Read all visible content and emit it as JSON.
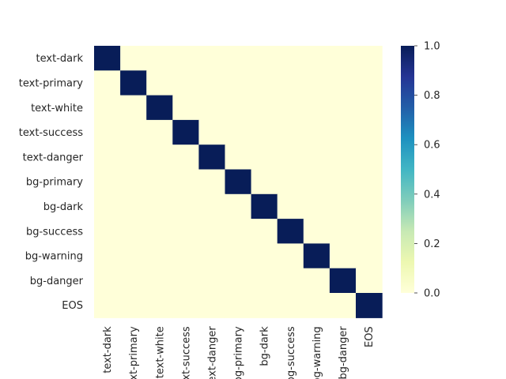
{
  "chart_data": {
    "type": "heatmap",
    "title": "",
    "xlabel": "",
    "ylabel": "",
    "rows": [
      "text-dark",
      "text-primary",
      "text-white",
      "text-success",
      "text-danger",
      "bg-primary",
      "bg-dark",
      "bg-success",
      "bg-warning",
      "bg-danger",
      "EOS"
    ],
    "cols": [
      "text-dark",
      "text-primary",
      "text-white",
      "text-success",
      "text-danger",
      "bg-primary",
      "bg-dark",
      "bg-success",
      "bg-warning",
      "bg-danger",
      "EOS"
    ],
    "values": [
      [
        1,
        0,
        0,
        0,
        0,
        0,
        0,
        0,
        0,
        0,
        0
      ],
      [
        0,
        1,
        0,
        0,
        0,
        0,
        0,
        0,
        0,
        0,
        0
      ],
      [
        0,
        0,
        1,
        0,
        0,
        0,
        0,
        0,
        0,
        0,
        0
      ],
      [
        0,
        0,
        0,
        1,
        0,
        0,
        0,
        0,
        0,
        0,
        0
      ],
      [
        0,
        0,
        0,
        0,
        1,
        0,
        0,
        0,
        0,
        0,
        0
      ],
      [
        0,
        0,
        0,
        0,
        0,
        1,
        0,
        0,
        0,
        0,
        0
      ],
      [
        0,
        0,
        0,
        0,
        0,
        0,
        1,
        0,
        0,
        0,
        0
      ],
      [
        0,
        0,
        0,
        0,
        0,
        0,
        0,
        1,
        0,
        0,
        0
      ],
      [
        0,
        0,
        0,
        0,
        0,
        0,
        0,
        0,
        1,
        0,
        0
      ],
      [
        0,
        0,
        0,
        0,
        0,
        0,
        0,
        0,
        0,
        1,
        0
      ],
      [
        0,
        0,
        0,
        0,
        0,
        0,
        0,
        0,
        0,
        0,
        1
      ]
    ],
    "colormap": "YlGnBu",
    "vmin": 0.0,
    "vmax": 1.0,
    "colorbar_ticks": [
      "0.0",
      "0.2",
      "0.4",
      "0.6",
      "0.8",
      "1.0"
    ],
    "grid": false,
    "colors": {
      "low": "#ffffd9",
      "high": "#081d58"
    }
  }
}
